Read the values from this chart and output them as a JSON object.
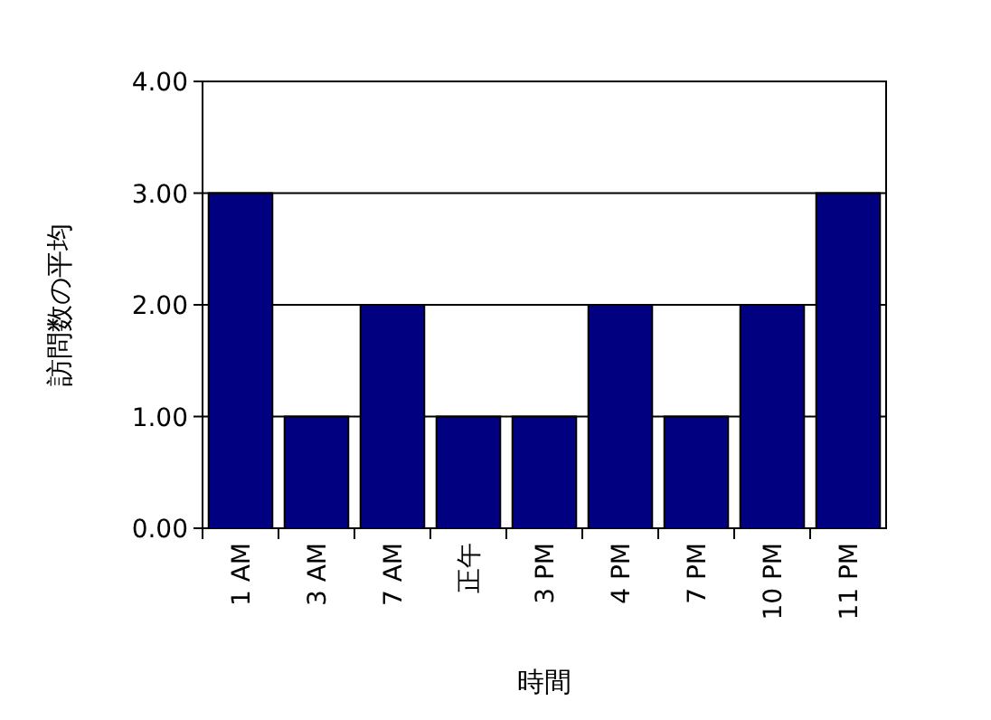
{
  "chart_data": {
    "type": "bar",
    "xlabel": "時間",
    "ylabel": "訪問数の平均",
    "categories": [
      "1 AM",
      "3 AM",
      "7 AM",
      "正午",
      "3 PM",
      "4 PM",
      "7 PM",
      "10 PM",
      "11 PM"
    ],
    "values": [
      3,
      1,
      2,
      1,
      1,
      2,
      1,
      2,
      3
    ],
    "color": "#000080",
    "ylim": [
      0,
      4
    ],
    "yticks": [
      {
        "value": 0,
        "label": "0.00"
      },
      {
        "value": 1,
        "label": "1.00"
      },
      {
        "value": 2,
        "label": "2.00"
      },
      {
        "value": 3,
        "label": "3.00"
      },
      {
        "value": 4,
        "label": "4.00"
      }
    ],
    "grid": "y"
  }
}
